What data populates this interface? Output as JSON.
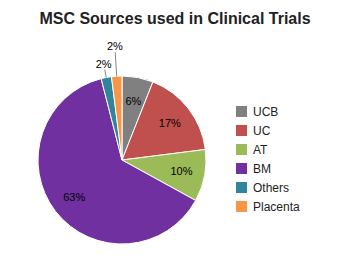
{
  "chart_data": {
    "type": "pie",
    "title": "MSC Sources used in Clinical Trials",
    "categories": [
      "UCB",
      "UC",
      "AT",
      "BM",
      "Others",
      "Placenta"
    ],
    "values": [
      6,
      17,
      10,
      63,
      2,
      2
    ],
    "value_labels": [
      "6%",
      "17%",
      "10%",
      "63%",
      "2%",
      "2%"
    ],
    "colors": [
      "#808080",
      "#C0504D",
      "#9BBB59",
      "#7030A0",
      "#31849B",
      "#F79646"
    ],
    "data_labels": true,
    "legend": "right"
  }
}
